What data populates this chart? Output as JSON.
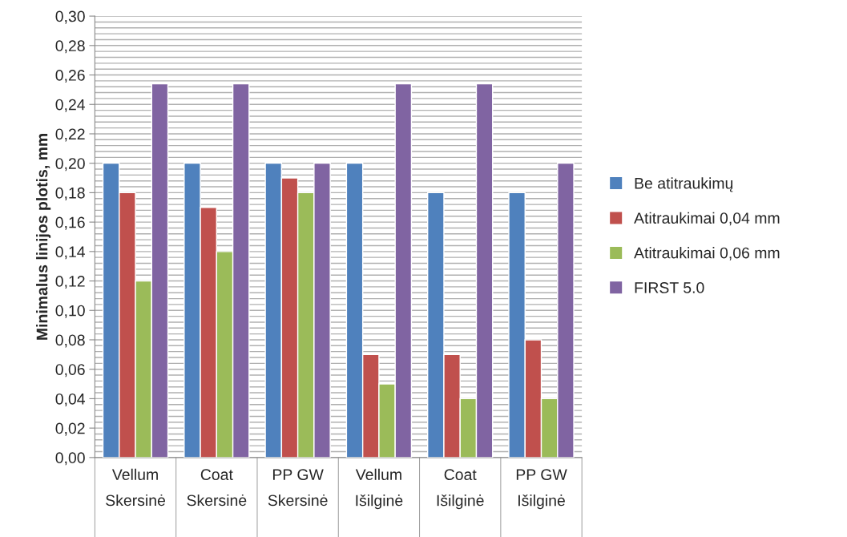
{
  "chart_data": {
    "type": "bar",
    "ylabel": "Minimalus linijos plotis, mm",
    "categories": [
      "Vellum\nSkersinė",
      "Coat\nSkersinė",
      "PP GW\nSkersinė",
      "Vellum\nIšilginė",
      "Coat\nIšilginė",
      "PP GW\nIšilginė"
    ],
    "series": [
      {
        "name": "Be atitraukimų",
        "color": "#4f81bd",
        "values": [
          0.2,
          0.2,
          0.2,
          0.2,
          0.18,
          0.18
        ]
      },
      {
        "name": "Atitraukimai 0,04 mm",
        "color": "#c0504d",
        "values": [
          0.18,
          0.17,
          0.19,
          0.07,
          0.07,
          0.08
        ]
      },
      {
        "name": "Atitraukimai 0,06 mm",
        "color": "#9bbb59",
        "values": [
          0.12,
          0.14,
          0.18,
          0.05,
          0.04,
          0.04
        ]
      },
      {
        "name": "FIRST 5.0",
        "color": "#8064a2",
        "values": [
          0.254,
          0.254,
          0.2,
          0.254,
          0.254,
          0.2
        ]
      }
    ],
    "ylim": [
      0,
      0.3
    ],
    "yticks": [
      {
        "value": 0,
        "label": "0,00"
      },
      {
        "value": 0.02,
        "label": "0,02"
      },
      {
        "value": 0.04,
        "label": "0,04"
      },
      {
        "value": 0.06,
        "label": "0,06"
      },
      {
        "value": 0.08,
        "label": "0,08"
      },
      {
        "value": 0.1,
        "label": "0,10"
      },
      {
        "value": 0.12,
        "label": "0,12"
      },
      {
        "value": 0.14,
        "label": "0,14"
      },
      {
        "value": 0.16,
        "label": "0,16"
      },
      {
        "value": 0.18,
        "label": "0,18"
      },
      {
        "value": 0.2,
        "label": "0,20"
      },
      {
        "value": 0.22,
        "label": "0,22"
      },
      {
        "value": 0.24,
        "label": "0,24"
      },
      {
        "value": 0.26,
        "label": "0,26"
      },
      {
        "value": 0.28,
        "label": "0,28"
      },
      {
        "value": 0.3,
        "label": "0,30"
      }
    ],
    "grid": "y",
    "legend": "right"
  }
}
